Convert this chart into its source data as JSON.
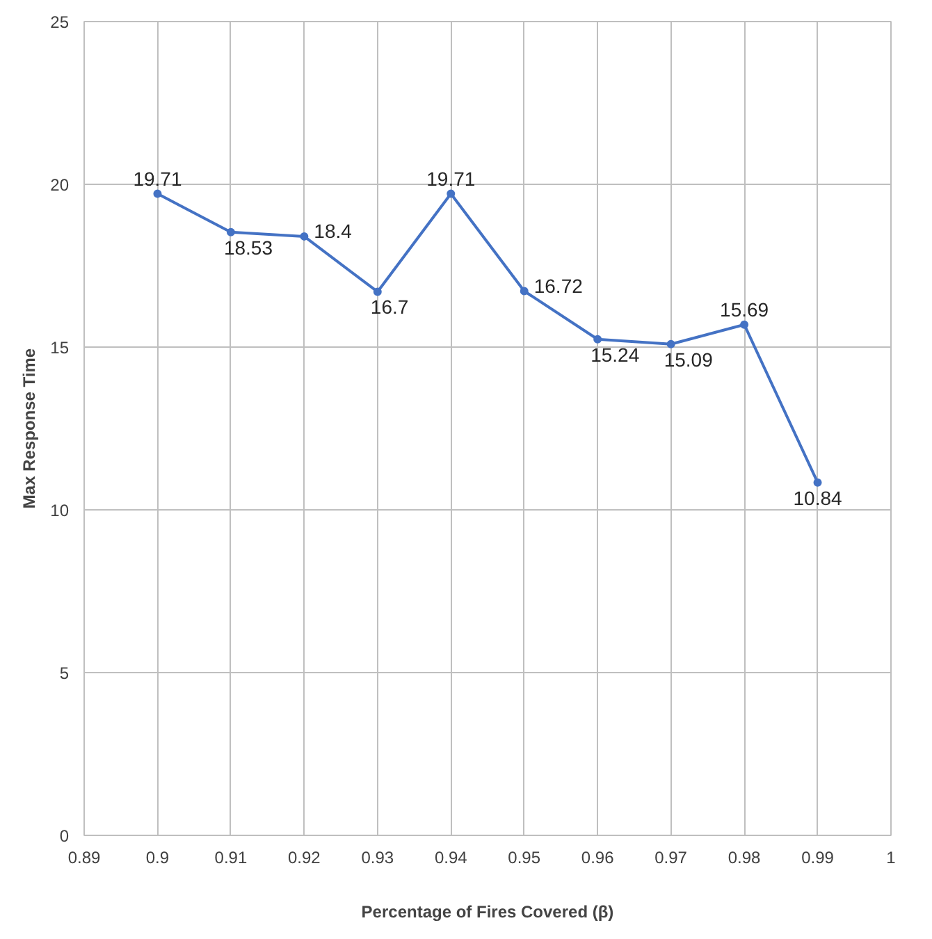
{
  "chart_data": {
    "type": "line",
    "xlabel": "Percentage of Fires Covered (β)",
    "ylabel": "Max Response Time",
    "x": [
      0.9,
      0.91,
      0.92,
      0.93,
      0.94,
      0.95,
      0.96,
      0.97,
      0.98,
      0.99
    ],
    "series": [
      {
        "color": "#4472c4",
        "values": [
          19.71,
          18.53,
          18.4,
          16.7,
          19.71,
          16.72,
          15.24,
          15.09,
          15.69,
          10.84
        ]
      }
    ],
    "xlim": [
      0.89,
      1
    ],
    "xticks": [
      0.89,
      0.9,
      0.91,
      0.92,
      0.93,
      0.94,
      0.95,
      0.96,
      0.97,
      0.98,
      0.99,
      1
    ],
    "ylim": [
      0,
      25
    ],
    "yticks": [
      0,
      5,
      10,
      15,
      20,
      25
    ],
    "grid": true,
    "marker": "circle",
    "line_style": "solid",
    "data_labels": true
  }
}
